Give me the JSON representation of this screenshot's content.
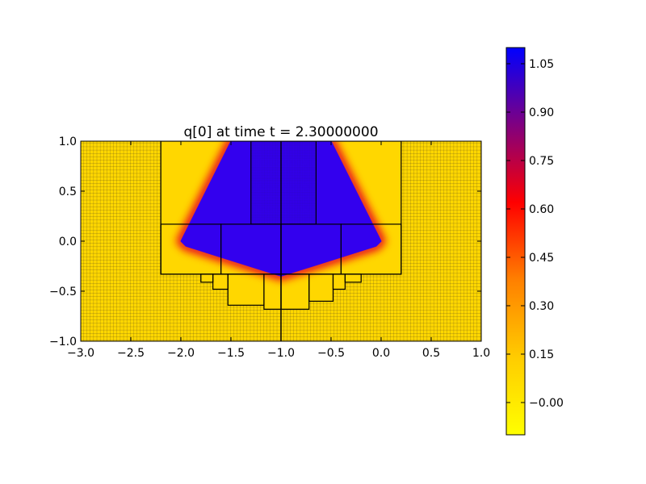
{
  "chart_data": {
    "type": "heatmap",
    "title": "q[0] at time t =      2.30000000",
    "xlabel": "",
    "ylabel": "",
    "xlim": [
      -3.0,
      1.0
    ],
    "ylim": [
      -1.0,
      1.0
    ],
    "x_ticks": [
      "−3.0",
      "−2.5",
      "−2.0",
      "−1.5",
      "−1.0",
      "−0.5",
      "0.0",
      "0.5",
      "1.0"
    ],
    "x_tick_values": [
      -3.0,
      -2.5,
      -2.0,
      -1.5,
      -1.0,
      -0.5,
      0.0,
      0.5,
      1.0
    ],
    "y_ticks": [
      "−1.0",
      "−0.5",
      "0.0",
      "0.5",
      "1.0"
    ],
    "y_tick_values": [
      -1.0,
      -0.5,
      0.0,
      0.5,
      1.0
    ],
    "grid": false,
    "colormap": {
      "name": "yellow-red-blue",
      "range": [
        -0.1,
        1.1
      ],
      "stops": [
        "#ffff00",
        "#ffcc00",
        "#ff8000",
        "#ff0000",
        "#800080",
        "#0000ff"
      ],
      "ticks": [
        "−0.00",
        "0.15",
        "0.30",
        "0.45",
        "0.60",
        "0.75",
        "0.90",
        "1.05"
      ],
      "tick_values": [
        0.0,
        0.15,
        0.3,
        0.45,
        0.6,
        0.75,
        0.9,
        1.05
      ]
    },
    "field": {
      "background_value": 0.0,
      "background_color": "#ffd700",
      "high_value": 1.0,
      "high_color": "#3300ee",
      "high_region_polygon": [
        [
          -1.5,
          1.0
        ],
        [
          -0.5,
          1.0
        ],
        [
          0.0,
          0.0
        ],
        [
          -0.05,
          -0.05
        ],
        [
          -1.0,
          -0.35
        ],
        [
          -1.95,
          -0.05
        ],
        [
          -2.0,
          0.0
        ]
      ]
    },
    "amr_patches": {
      "level1_grid_spacing": 0.0333,
      "rectangles": [
        {
          "x0": -2.2,
          "y0": -0.33,
          "x1": 0.2,
          "y1": 1.0
        },
        {
          "x0": -1.3,
          "y0": 0.17,
          "x1": -0.65,
          "y1": 1.0
        },
        {
          "x0": -2.2,
          "y0": -0.33,
          "x1": -1.6,
          "y1": 0.17
        },
        {
          "x0": -1.6,
          "y0": -0.33,
          "x1": -1.0,
          "y1": 0.17
        },
        {
          "x0": -1.0,
          "y0": -0.33,
          "x1": -0.4,
          "y1": 0.17
        },
        {
          "x0": -0.4,
          "y0": -0.33,
          "x1": 0.2,
          "y1": 0.17
        },
        {
          "x0": -1.8,
          "y0": -0.41,
          "x1": -1.68,
          "y1": -0.33
        },
        {
          "x0": -1.68,
          "y0": -0.48,
          "x1": -1.53,
          "y1": -0.33
        },
        {
          "x0": -1.53,
          "y0": -0.64,
          "x1": -1.17,
          "y1": -0.33
        },
        {
          "x0": -1.17,
          "y0": -0.68,
          "x1": -1.0,
          "y1": -0.33
        },
        {
          "x0": -1.0,
          "y0": -0.68,
          "x1": -0.72,
          "y1": -0.33
        },
        {
          "x0": -0.72,
          "y0": -0.6,
          "x1": -0.48,
          "y1": -0.33
        },
        {
          "x0": -0.48,
          "y0": -0.48,
          "x1": -0.36,
          "y1": -0.33
        },
        {
          "x0": -0.36,
          "y0": -0.41,
          "x1": -0.2,
          "y1": -0.33
        }
      ],
      "lines": [
        {
          "x0": -1.0,
          "y0": -1.0,
          "x1": -1.0,
          "y1": 1.0
        }
      ]
    }
  }
}
